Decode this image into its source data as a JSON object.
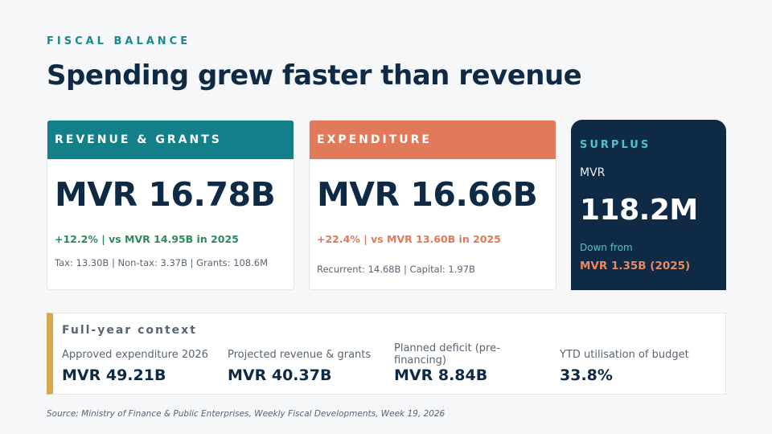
{
  "header": {
    "eyebrow": "FISCAL BALANCE",
    "title": "Spending grew faster than revenue"
  },
  "revenue_card": {
    "heading": "REVENUE & GRANTS",
    "value": "MVR 16.78B",
    "change": "+12.2%  |  vs MVR 14.95B in 2025",
    "detail": "Tax: 13.30B  |  Non-tax: 3.37B  |  Grants: 108.6M",
    "color": "#137f88"
  },
  "expenditure_card": {
    "heading": "EXPENDITURE",
    "value": "MVR 16.66B",
    "change": "+22.4%  |  vs MVR 13.60B in 2025",
    "detail": "Recurrent: 14.68B  |  Capital: 1.97B",
    "color": "#e07a5a"
  },
  "surplus_card": {
    "heading": "SURPLUS",
    "unit": "MVR",
    "value": "118.2M",
    "down_label": "Down from",
    "previous": "MVR 1.35B (2025)",
    "color": "#0f2a44"
  },
  "context": {
    "heading": "Full-year context",
    "accent_color": "#d6a84a",
    "metrics": [
      {
        "label": "Approved expenditure 2026",
        "value": "MVR 49.21B"
      },
      {
        "label": "Projected revenue & grants",
        "value": "MVR 40.37B"
      },
      {
        "label": "Planned deficit (pre-financing)",
        "value": "MVR 8.84B"
      },
      {
        "label": "YTD utilisation of budget",
        "value": "33.8%"
      }
    ]
  },
  "source": "Source: Ministry of Finance & Public Enterprises, Weekly Fiscal Developments, Week 19, 2026"
}
